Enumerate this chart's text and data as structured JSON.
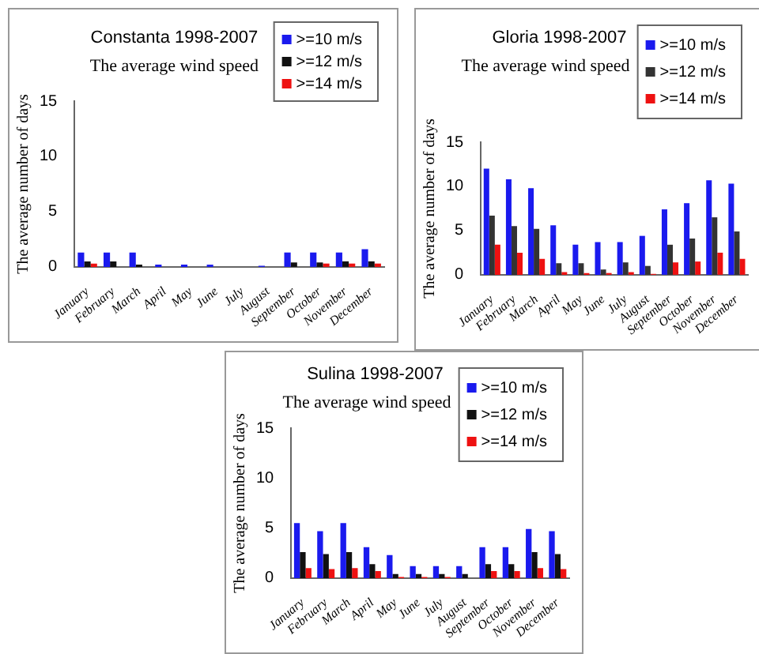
{
  "chart_data": [
    {
      "type": "bar",
      "title": "Constanta 1998-2007",
      "subtitle": "The average wind speed",
      "ylabel": "The average number of days",
      "categories": [
        "January",
        "February",
        "March",
        "April",
        "May",
        "June",
        "July",
        "August",
        "September",
        "October",
        "November",
        "December"
      ],
      "series": [
        {
          "name": ">=10 m/s",
          "color": "#1a1aee",
          "values": [
            1.3,
            1.3,
            1.3,
            0.2,
            0.2,
            0.2,
            0,
            0.1,
            1.3,
            1.3,
            1.3,
            1.6
          ]
        },
        {
          "name": ">=12 m/s",
          "color": "#111111",
          "values": [
            0.5,
            0.5,
            0.2,
            0,
            0,
            0,
            0,
            0,
            0.4,
            0.4,
            0.5,
            0.5
          ]
        },
        {
          "name": ">=14 m/s",
          "color": "#ee1111",
          "values": [
            0.3,
            0,
            0,
            0,
            0,
            0,
            0,
            0,
            0,
            0.3,
            0.3,
            0.3
          ]
        }
      ],
      "ylim": [
        0,
        15
      ],
      "yticks": [
        0,
        5,
        10,
        15
      ],
      "legend": "top right"
    },
    {
      "type": "bar",
      "title": "Gloria 1998-2007",
      "subtitle": "The average wind speed",
      "ylabel": "The average number of days",
      "categories": [
        "January",
        "February",
        "March",
        "April",
        "May",
        "June",
        "July",
        "August",
        "September",
        "October",
        "November",
        "December"
      ],
      "series": [
        {
          "name": ">=10 m/s",
          "color": "#1a1aee",
          "values": [
            12.0,
            10.8,
            9.8,
            5.6,
            3.4,
            3.7,
            3.7,
            4.4,
            7.4,
            8.1,
            10.7,
            10.3
          ]
        },
        {
          "name": ">=12 m/s",
          "color": "#333333",
          "values": [
            6.7,
            5.5,
            5.2,
            1.3,
            1.3,
            0.6,
            1.4,
            1.0,
            3.4,
            4.1,
            6.5,
            4.9
          ]
        },
        {
          "name": ">=14 m/s",
          "color": "#ee1111",
          "values": [
            3.4,
            2.5,
            1.8,
            0.3,
            0.2,
            0.2,
            0.3,
            0.1,
            1.4,
            1.5,
            2.5,
            1.8
          ]
        }
      ],
      "ylim": [
        0,
        15
      ],
      "yticks": [
        0,
        5,
        10,
        15
      ],
      "legend": "top right"
    },
    {
      "type": "bar",
      "title": "Sulina 1998-2007",
      "subtitle": "The average wind speed",
      "ylabel": "The average number of days",
      "categories": [
        "January",
        "February",
        "March",
        "April",
        "May",
        "June",
        "July",
        "August",
        "September",
        "October",
        "November",
        "December"
      ],
      "series": [
        {
          "name": ">=10 m/s",
          "color": "#1a1aee",
          "values": [
            5.5,
            4.7,
            5.5,
            3.1,
            2.3,
            1.2,
            1.2,
            1.2,
            3.1,
            3.1,
            4.9,
            4.7
          ]
        },
        {
          "name": ">=12 m/s",
          "color": "#111111",
          "values": [
            2.6,
            2.4,
            2.6,
            1.4,
            0.4,
            0.4,
            0.4,
            0.4,
            1.4,
            1.4,
            2.6,
            2.4
          ]
        },
        {
          "name": ">=14 m/s",
          "color": "#ee1111",
          "values": [
            1.0,
            0.9,
            1.0,
            0.7,
            0.1,
            0.1,
            0.1,
            0,
            0.7,
            0.7,
            1.0,
            0.9
          ]
        }
      ],
      "ylim": [
        0,
        15
      ],
      "yticks": [
        0,
        5,
        10,
        15
      ],
      "legend": "top right"
    }
  ]
}
